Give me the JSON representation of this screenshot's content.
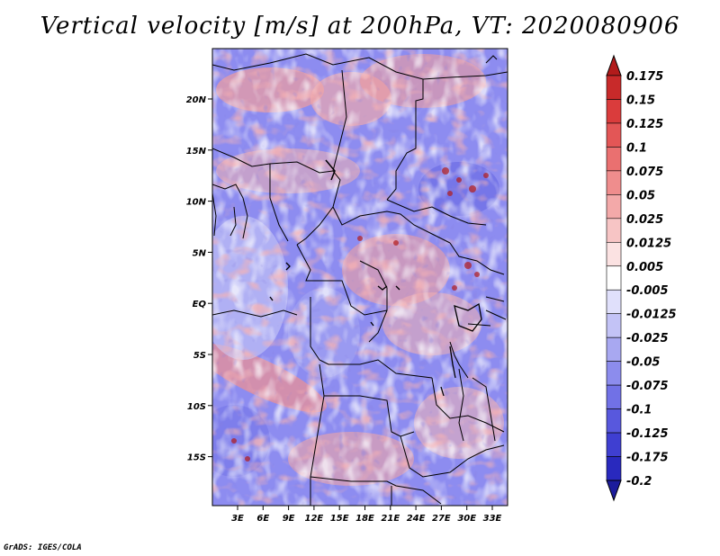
{
  "title": "Vertical velocity [m/s] at 200hPa, VT: 2020080906",
  "credit": "GrADS: IGES/COLA",
  "map": {
    "lat_ticks": [
      "20N",
      "15N",
      "10N",
      "5N",
      "EQ",
      "5S",
      "10S",
      "15S"
    ],
    "lon_ticks": [
      "3E",
      "6E",
      "9E",
      "12E",
      "15E",
      "18E",
      "21E",
      "24E",
      "27E",
      "30E",
      "33E"
    ],
    "background_color": "#ffffff",
    "dominant_colors": [
      "#7a78ef",
      "#f08f8f"
    ]
  },
  "colorbar": {
    "levels": [
      "0.175",
      "0.15",
      "0.125",
      "0.1",
      "0.075",
      "0.05",
      "0.025",
      "0.0125",
      "0.005",
      "-0.005",
      "-0.0125",
      "-0.025",
      "-0.05",
      "-0.075",
      "-0.1",
      "-0.125",
      "-0.175",
      "-0.2"
    ],
    "colors": [
      "#b21b1b",
      "#c82a2a",
      "#da3c3c",
      "#e35656",
      "#ea7070",
      "#ef8d8d",
      "#f3a9a9",
      "#f7c5c5",
      "#fbe2e2",
      "#ffffff",
      "#e0e0fb",
      "#c3c3f6",
      "#a8a8f1",
      "#8c8ced",
      "#7171e6",
      "#5858dd",
      "#3f3fd1",
      "#2929be",
      "#1c1c9c"
    ]
  }
}
